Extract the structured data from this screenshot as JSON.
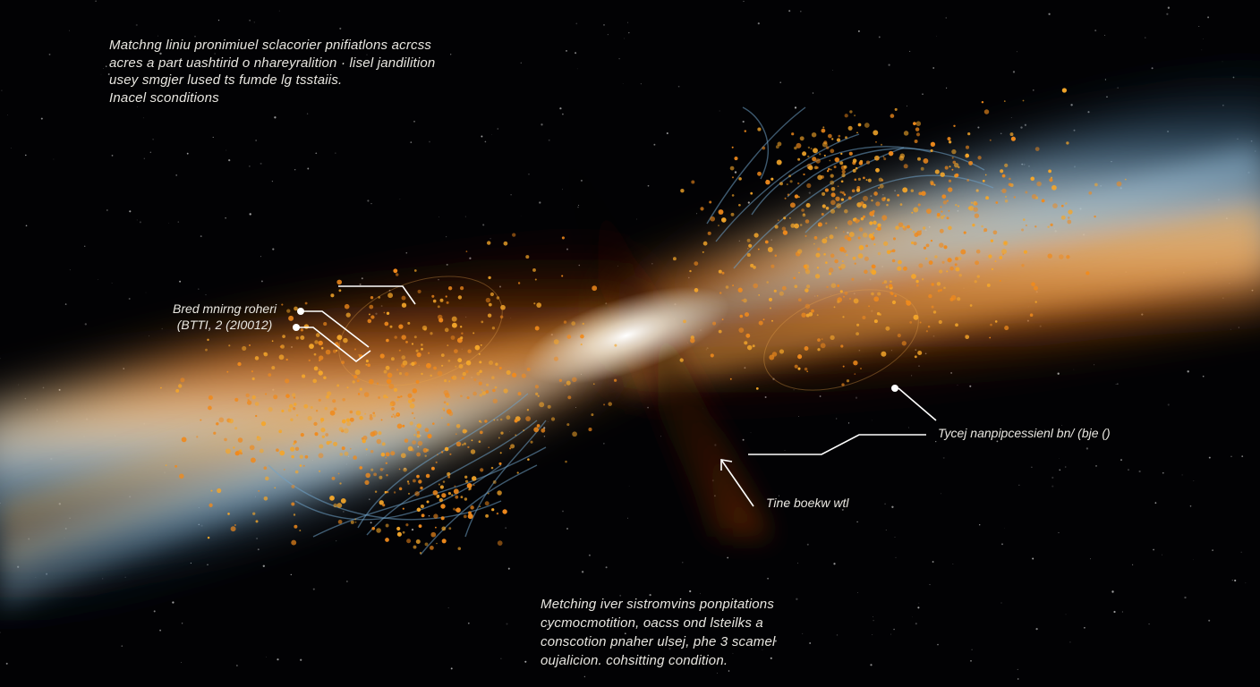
{
  "captions": {
    "top_left": "Matchng liniu pronimiuel sclacorier pnifiatlons acrcss\nacres a part uashtirid o nhareyralition · lisel jandilition\nusey smgjer lused ts fumde lg tsstaiis.\nInacel sconditions",
    "bottom": "Metching iver sistromvins ponpitations\ncycmocmotition, oacss ond lsteilks a\nconscotion pnaher ulsej, phe 3 scamel\noujalicion. cohsitting condition."
  },
  "labels": {
    "left": "Bred mnirng roheri\n(BTTI, 2 (2I0012)",
    "right": "Tycej nanpipcessienl bn/ (bje ()",
    "right_lower": "Tine boekw wtl"
  },
  "colors": {
    "background": "#020204",
    "orange": "#f08a1c",
    "gold": "#f4a62a",
    "blue": "#6fa3c8",
    "white_core": "#f4f1ea",
    "annotation_line": "#ffffff"
  }
}
